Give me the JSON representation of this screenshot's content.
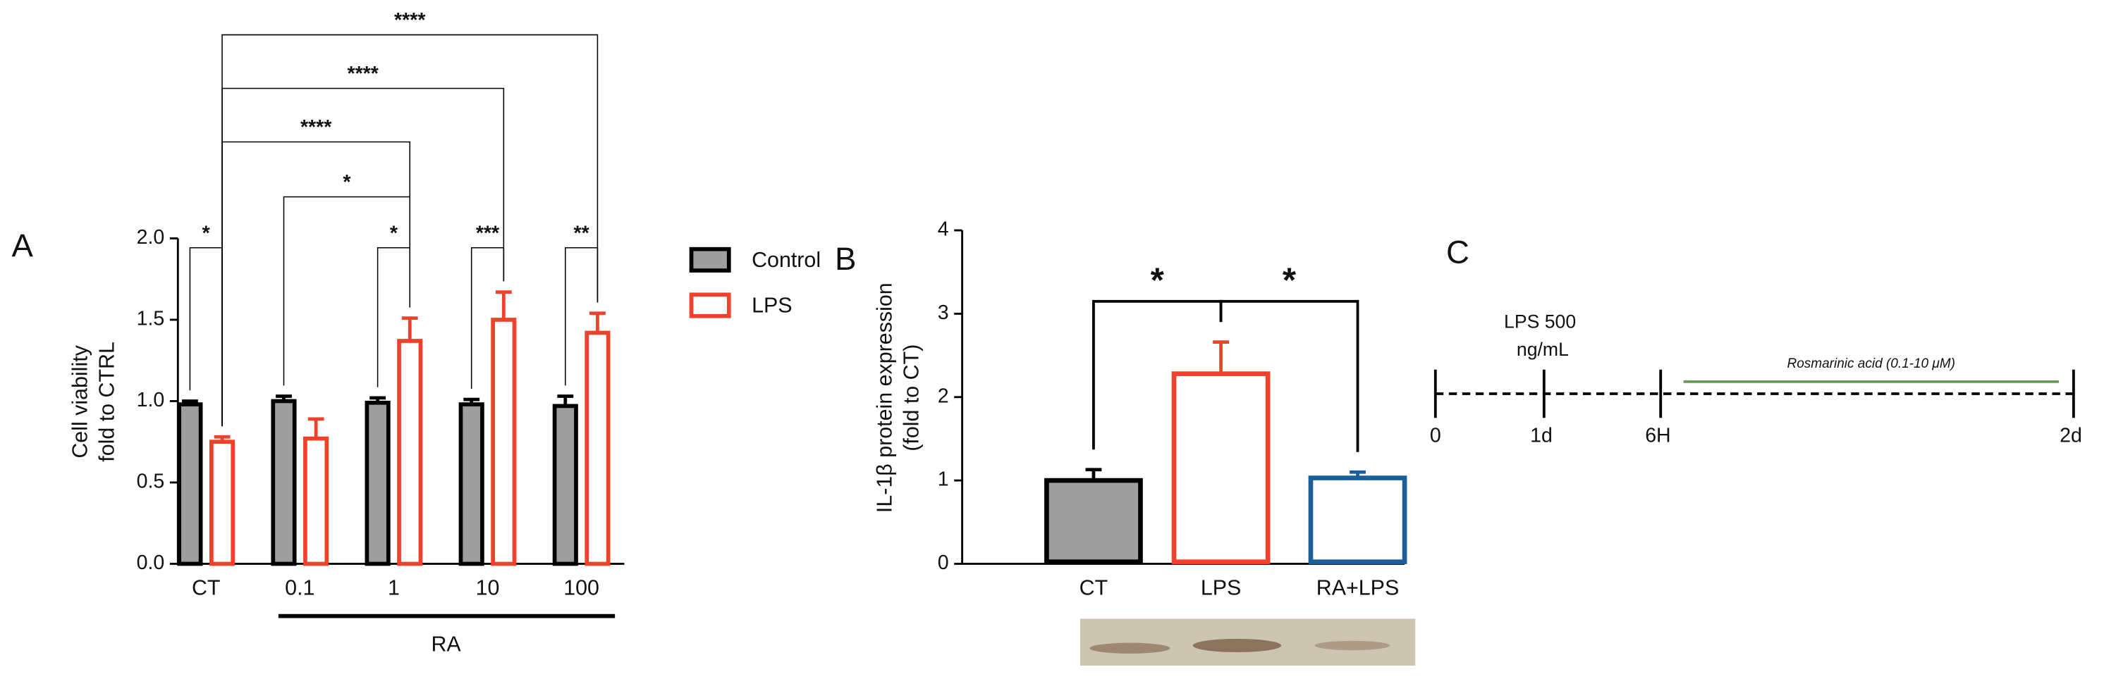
{
  "chart_data": [
    {
      "type": "bar",
      "panel": "A",
      "ylabel": [
        "Cell viability",
        "fold to CTRL"
      ],
      "categories": [
        "CT",
        "0.1",
        "1",
        "10",
        "100"
      ],
      "group_label": "RA",
      "series": [
        {
          "name": "Control",
          "color": "#9e9e9e",
          "edge": "#000000",
          "values": [
            0.98,
            1.0,
            0.99,
            0.98,
            0.97
          ],
          "errors": [
            0.02,
            0.03,
            0.03,
            0.03,
            0.06
          ]
        },
        {
          "name": "LPS",
          "color": "#ffffff",
          "edge": "#f0412a",
          "values": [
            0.75,
            0.77,
            1.37,
            1.5,
            1.42
          ],
          "errors": [
            0.03,
            0.12,
            0.14,
            0.17,
            0.12
          ]
        }
      ],
      "ylim": [
        0,
        2
      ],
      "yticks": [
        {
          "value": 0,
          "label": "0.0"
        },
        0.5,
        {
          "value": 1,
          "label": "1.0"
        },
        1.5,
        {
          "value": 2,
          "label": "2.0"
        }
      ],
      "significance": [
        "*",
        "*",
        "***",
        "**",
        "*",
        "****",
        "****",
        "****"
      ]
    },
    {
      "type": "bar",
      "panel": "B",
      "ylabel": [
        "IL-1β protein expression",
        "(fold to CT)"
      ],
      "categories": [
        "CT",
        "LPS",
        "RA+LPS"
      ],
      "values": [
        1.0,
        2.28,
        1.03
      ],
      "errors": [
        0.13,
        0.38,
        0.07
      ],
      "colors": [
        "#9e9e9e",
        "#ffffff",
        "#ffffff"
      ],
      "edge_colors": [
        "#000000",
        "#f0412a",
        "#1a5f9a"
      ],
      "ylim": [
        0,
        4
      ],
      "yticks": [
        0,
        1,
        2,
        3,
        4
      ],
      "significance": [
        "*",
        "*"
      ]
    },
    {
      "type": "timeline",
      "panel": "C",
      "ticks": [
        "0",
        "1d",
        "6H",
        "2d"
      ],
      "event": [
        "LPS 500",
        "ng/mL"
      ],
      "treatment": "Rosmarinic acid (0.1-10 μM)",
      "treatment_color": "#6a9a5a"
    }
  ]
}
